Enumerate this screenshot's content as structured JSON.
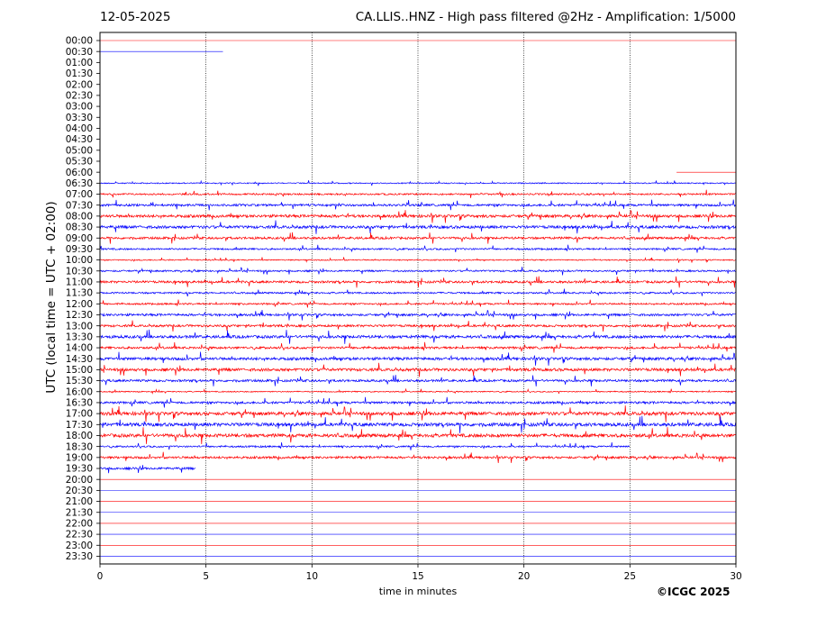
{
  "header": {
    "date": "12-05-2025",
    "title": "CA.LLIS..HNZ - High pass filtered @2Hz - Amplification: 1/5000"
  },
  "footer": {
    "copyright": "©ICGC 2025"
  },
  "colors": {
    "red": "#ff0000",
    "blue": "#0000ff",
    "grid": "#000000"
  },
  "chart_data": {
    "type": "line",
    "title": "CA.LLIS..HNZ - High pass filtered @2Hz - Amplification: 1/5000",
    "xlabel": "time in minutes",
    "ylabel": "UTC (local time = UTC + 02:00)",
    "xlim": [
      0,
      30
    ],
    "x_ticks": [
      "0",
      "5",
      "10",
      "15",
      "20",
      "25",
      "30"
    ],
    "grid": "vertical dotted lines every 5 minutes",
    "row_labels": [
      "00:00",
      "00:30",
      "01:00",
      "01:30",
      "02:00",
      "02:30",
      "03:00",
      "03:30",
      "04:00",
      "04:30",
      "05:00",
      "05:30",
      "06:00",
      "06:30",
      "07:00",
      "07:30",
      "08:00",
      "08:30",
      "09:00",
      "09:30",
      "10:00",
      "10:30",
      "11:00",
      "11:30",
      "12:00",
      "12:30",
      "13:00",
      "13:30",
      "14:00",
      "14:30",
      "15:00",
      "15:30",
      "16:00",
      "16:30",
      "17:00",
      "17:30",
      "18:00",
      "18:30",
      "19:00",
      "19:30",
      "20:00",
      "20:30",
      "21:00",
      "21:30",
      "22:00",
      "22:30",
      "23:00",
      "23:30"
    ],
    "row_colors_cycle": [
      "red",
      "blue"
    ],
    "traces": [
      {
        "row": "00:00",
        "color": "red",
        "x_start": 0,
        "x_end": 30,
        "amplitude": 0
      },
      {
        "row": "00:30",
        "color": "blue",
        "x_start": 0,
        "x_end": 5.8,
        "amplitude": 0
      },
      {
        "row": "06:00",
        "color": "red",
        "x_start": 27.2,
        "x_end": 30,
        "amplitude": 0
      },
      {
        "row": "06:30",
        "color": "blue",
        "x_start": 0,
        "x_end": 30,
        "amplitude": 2
      },
      {
        "row": "07:00",
        "color": "red",
        "x_start": 0,
        "x_end": 30,
        "amplitude": 3
      },
      {
        "row": "07:30",
        "color": "blue",
        "x_start": 0,
        "x_end": 30,
        "amplitude": 4
      },
      {
        "row": "08:00",
        "color": "red",
        "x_start": 0,
        "x_end": 30,
        "amplitude": 5
      },
      {
        "row": "08:30",
        "color": "blue",
        "x_start": 0,
        "x_end": 30,
        "amplitude": 5
      },
      {
        "row": "09:00",
        "color": "red",
        "x_start": 0,
        "x_end": 30,
        "amplitude": 4
      },
      {
        "row": "09:30",
        "color": "blue",
        "x_start": 0,
        "x_end": 30,
        "amplitude": 3
      },
      {
        "row": "10:00",
        "color": "red",
        "x_start": 0,
        "x_end": 30,
        "amplitude": 2
      },
      {
        "row": "10:30",
        "color": "blue",
        "x_start": 0,
        "x_end": 30,
        "amplitude": 3
      },
      {
        "row": "11:00",
        "color": "red",
        "x_start": 0,
        "x_end": 30,
        "amplitude": 4
      },
      {
        "row": "11:30",
        "color": "blue",
        "x_start": 0,
        "x_end": 30,
        "amplitude": 3
      },
      {
        "row": "12:00",
        "color": "red",
        "x_start": 0,
        "x_end": 30,
        "amplitude": 3
      },
      {
        "row": "12:30",
        "color": "blue",
        "x_start": 0,
        "x_end": 30,
        "amplitude": 4
      },
      {
        "row": "13:00",
        "color": "red",
        "x_start": 0,
        "x_end": 30,
        "amplitude": 4
      },
      {
        "row": "13:30",
        "color": "blue",
        "x_start": 0,
        "x_end": 30,
        "amplitude": 5
      },
      {
        "row": "14:00",
        "color": "red",
        "x_start": 0,
        "x_end": 30,
        "amplitude": 4
      },
      {
        "row": "14:30",
        "color": "blue",
        "x_start": 0,
        "x_end": 30,
        "amplitude": 5
      },
      {
        "row": "15:00",
        "color": "red",
        "x_start": 0,
        "x_end": 30,
        "amplitude": 5
      },
      {
        "row": "15:30",
        "color": "blue",
        "x_start": 0,
        "x_end": 30,
        "amplitude": 4
      },
      {
        "row": "16:00",
        "color": "red",
        "x_start": 0,
        "x_end": 30,
        "amplitude": 2
      },
      {
        "row": "16:30",
        "color": "blue",
        "x_start": 0,
        "x_end": 30,
        "amplitude": 4
      },
      {
        "row": "17:00",
        "color": "red",
        "x_start": 0,
        "x_end": 30,
        "amplitude": 6
      },
      {
        "row": "17:30",
        "color": "blue",
        "x_start": 0,
        "x_end": 30,
        "amplitude": 6
      },
      {
        "row": "18:00",
        "color": "red",
        "x_start": 0,
        "x_end": 30,
        "amplitude": 6
      },
      {
        "row": "18:30",
        "color": "blue",
        "x_start": 0,
        "x_end": 25,
        "amplitude": 3
      },
      {
        "row": "19:00",
        "color": "red",
        "x_start": 0,
        "x_end": 30,
        "amplitude": 4
      },
      {
        "row": "19:30",
        "color": "blue",
        "x_start": 0,
        "x_end": 4.5,
        "amplitude": 4
      },
      {
        "row": "20:00",
        "color": "red",
        "x_start": 0,
        "x_end": 30,
        "amplitude": 0
      },
      {
        "row": "20:30",
        "color": "blue",
        "x_start": 0,
        "x_end": 30,
        "amplitude": 0
      },
      {
        "row": "21:00",
        "color": "red",
        "x_start": 0,
        "x_end": 30,
        "amplitude": 0
      },
      {
        "row": "21:30",
        "color": "blue",
        "x_start": 0,
        "x_end": 30,
        "amplitude": 0
      },
      {
        "row": "22:00",
        "color": "red",
        "x_start": 0,
        "x_end": 30,
        "amplitude": 0
      },
      {
        "row": "22:30",
        "color": "blue",
        "x_start": 0,
        "x_end": 30,
        "amplitude": 0
      },
      {
        "row": "23:00",
        "color": "red",
        "x_start": 0,
        "x_end": 30,
        "amplitude": 0
      },
      {
        "row": "23:30",
        "color": "blue",
        "x_start": 0,
        "x_end": 30,
        "amplitude": 0
      }
    ]
  }
}
